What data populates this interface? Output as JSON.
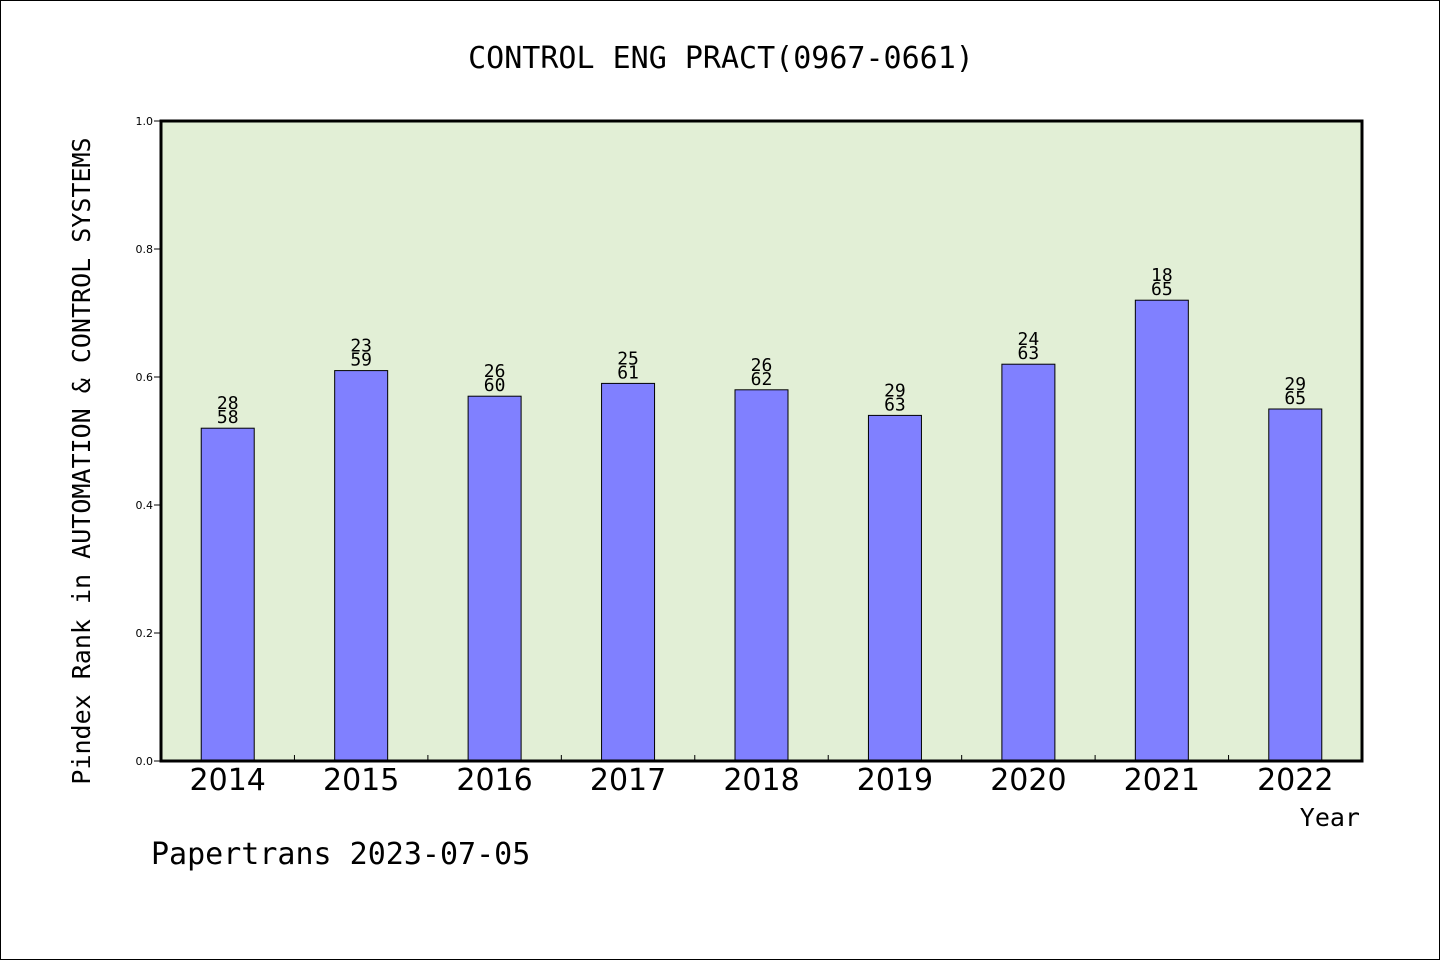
{
  "chart_data": {
    "type": "bar",
    "title": "CONTROL ENG PRACT(0967-0661)",
    "xlabel": "Year",
    "ylabel": "Pindex Rank in AUTOMATION & CONTROL SYSTEMS",
    "categories": [
      "2014",
      "2015",
      "2016",
      "2017",
      "2018",
      "2019",
      "2020",
      "2021",
      "2022"
    ],
    "values": [
      0.52,
      0.61,
      0.57,
      0.59,
      0.58,
      0.54,
      0.62,
      0.72,
      0.55
    ],
    "label_rank": [
      "28",
      "23",
      "26",
      "25",
      "26",
      "29",
      "24",
      "18",
      "29"
    ],
    "label_total": [
      "58",
      "59",
      "60",
      "61",
      "62",
      "63",
      "63",
      "65",
      "65"
    ],
    "ylim": [
      0,
      1.0
    ],
    "yticks": [
      "0.0",
      "0.2",
      "0.4",
      "0.6",
      "0.8",
      "1.0"
    ],
    "ytick_values": [
      0,
      0.2,
      0.4,
      0.6,
      0.8,
      1.0
    ],
    "grid": false,
    "colors": {
      "bar": "#8080ff",
      "plot_background": "#e2efd6"
    }
  },
  "footer": {
    "text": "Papertrans 2023-07-05"
  }
}
